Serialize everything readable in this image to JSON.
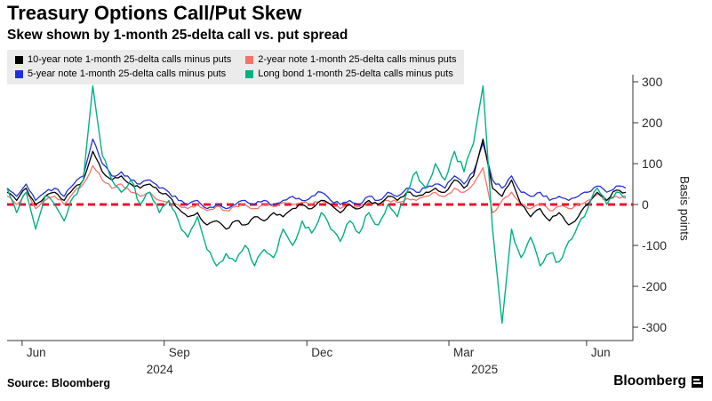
{
  "header": {
    "title": "Treasury Options Call/Put Skew",
    "subtitle": "Skew shown by 1-month 25-delta call vs. put spread"
  },
  "chart_data": {
    "type": "line",
    "title": "Treasury Options Call/Put Skew",
    "ylabel": "Basis points",
    "ylim": [
      -325,
      325
    ],
    "grid": false,
    "legend_position": "top",
    "y_ticks": [
      "300",
      "200",
      "100",
      "0",
      "-100",
      "-200",
      "-300"
    ],
    "y_tick_values": [
      300,
      200,
      100,
      0,
      -100,
      -200,
      -300
    ],
    "x_ticks": [
      {
        "label": "Jun",
        "pos": 0.024
      },
      {
        "label": "Sep",
        "pos": 0.251
      },
      {
        "label": "Dec",
        "pos": 0.479
      },
      {
        "label": "Mar",
        "pos": 0.706
      },
      {
        "label": "Jun",
        "pos": 0.926
      }
    ],
    "year_labels": [
      {
        "label": "2024",
        "pos": 0.244
      },
      {
        "label": "2025",
        "pos": 0.763
      }
    ],
    "zero_line": {
      "value": 0,
      "color": "#e8112d",
      "style": "dashed"
    },
    "series": [
      {
        "name": "10-year note 1-month 25-delta calls minus puts",
        "color": "#000000",
        "values": [
          30,
          10,
          40,
          0,
          20,
          30,
          10,
          40,
          60,
          130,
          80,
          60,
          70,
          50,
          40,
          50,
          30,
          20,
          -10,
          -30,
          -20,
          -50,
          -40,
          -60,
          -40,
          -50,
          -30,
          -40,
          -20,
          -30,
          -10,
          0,
          -10,
          10,
          0,
          -20,
          0,
          -10,
          10,
          0,
          20,
          10,
          30,
          20,
          30,
          40,
          30,
          60,
          40,
          70,
          160,
          40,
          20,
          60,
          0,
          -30,
          -10,
          -40,
          -20,
          -50,
          -30,
          0,
          30,
          10,
          35,
          30
        ]
      },
      {
        "name": "2-year note 1-month 25-delta calls minus puts",
        "color": "#f4736b",
        "values": [
          20,
          0,
          30,
          -10,
          10,
          20,
          0,
          30,
          50,
          95,
          60,
          40,
          50,
          30,
          20,
          30,
          10,
          5,
          0,
          -10,
          0,
          -15,
          -5,
          -15,
          -5,
          0,
          -10,
          0,
          -5,
          5,
          0,
          5,
          0,
          10,
          0,
          -10,
          0,
          -5,
          5,
          0,
          10,
          5,
          15,
          10,
          20,
          30,
          20,
          40,
          30,
          50,
          90,
          -20,
          10,
          30,
          0,
          -10,
          0,
          -15,
          -5,
          -10,
          0,
          10,
          25,
          10,
          20,
          15
        ]
      },
      {
        "name": "5-year note 1-month 25-delta calls minus puts",
        "color": "#2131d4",
        "values": [
          40,
          20,
          50,
          10,
          30,
          40,
          20,
          50,
          70,
          160,
          100,
          70,
          80,
          60,
          50,
          60,
          40,
          30,
          10,
          0,
          10,
          -10,
          0,
          -10,
          0,
          10,
          0,
          10,
          0,
          10,
          20,
          10,
          20,
          30,
          10,
          0,
          10,
          0,
          20,
          10,
          30,
          20,
          40,
          30,
          40,
          50,
          40,
          70,
          50,
          80,
          150,
          60,
          40,
          70,
          30,
          20,
          30,
          10,
          20,
          10,
          20,
          30,
          45,
          30,
          45,
          40
        ]
      },
      {
        "name": "Long bond 1-month 25-delta calls minus puts",
        "color": "#00b186",
        "values": [
          40,
          -20,
          30,
          -60,
          20,
          0,
          -40,
          20,
          60,
          290,
          120,
          60,
          30,
          60,
          0,
          30,
          -20,
          10,
          -40,
          -80,
          -30,
          -110,
          -150,
          -120,
          -140,
          -100,
          -150,
          -110,
          -130,
          -60,
          -100,
          -40,
          -70,
          -20,
          -60,
          -90,
          -40,
          -70,
          -20,
          -50,
          0,
          -30,
          30,
          80,
          40,
          100,
          60,
          130,
          80,
          150,
          290,
          -60,
          -290,
          -60,
          -130,
          -80,
          -150,
          -120,
          -140,
          -90,
          -50,
          -10,
          40,
          0,
          30,
          20
        ]
      }
    ]
  },
  "footer": {
    "source": "Source: Bloomberg",
    "brand": "Bloomberg"
  }
}
